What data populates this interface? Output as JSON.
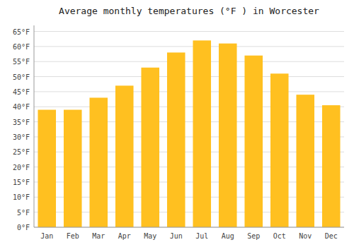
{
  "chart_data": {
    "type": "bar",
    "title": "Average monthly temperatures (°F ) in Worcester",
    "categories": [
      "Jan",
      "Feb",
      "Mar",
      "Apr",
      "May",
      "Jun",
      "Jul",
      "Aug",
      "Sep",
      "Oct",
      "Nov",
      "Dec"
    ],
    "values": [
      39,
      39,
      43,
      47,
      53,
      58,
      62,
      61,
      57,
      51,
      44,
      40.5
    ],
    "color": "#FFC020",
    "ylim": [
      0,
      67
    ],
    "yticks": [
      {
        "value": 0,
        "label": "0°F"
      },
      {
        "value": 5,
        "label": "5°F"
      },
      {
        "value": 10,
        "label": "10°F"
      },
      {
        "value": 15,
        "label": "15°F"
      },
      {
        "value": 20,
        "label": "20°F"
      },
      {
        "value": 25,
        "label": "25°F"
      },
      {
        "value": 30,
        "label": "30°F"
      },
      {
        "value": 35,
        "label": "35°F"
      },
      {
        "value": 40,
        "label": "40°F"
      },
      {
        "value": 45,
        "label": "45°F"
      },
      {
        "value": 50,
        "label": "50°F"
      },
      {
        "value": 55,
        "label": "55°F"
      },
      {
        "value": 60,
        "label": "60°F"
      },
      {
        "value": 65,
        "label": "65°F"
      }
    ],
    "grid": true
  }
}
